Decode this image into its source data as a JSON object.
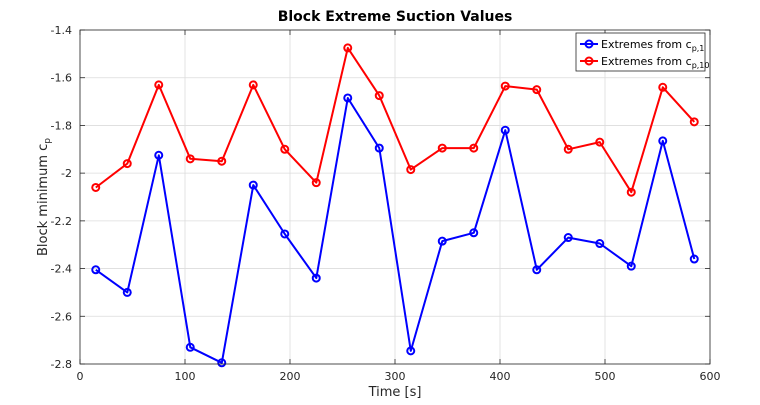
{
  "chart_data": {
    "type": "line",
    "title": "Block Extreme Suction Values",
    "xlabel": "Time [s]",
    "ylabel": "Block minimum c",
    "ylabel_subscript": "p",
    "xlim": [
      0,
      600
    ],
    "ylim": [
      -2.8,
      -1.4
    ],
    "xticks": [
      0,
      100,
      200,
      300,
      400,
      500,
      600
    ],
    "yticks": [
      -2.8,
      -2.6,
      -2.4,
      -2.2,
      -2.0,
      -1.8,
      -1.6,
      -1.4
    ],
    "xtick_labels": [
      "0",
      "100",
      "200",
      "300",
      "400",
      "500",
      "600"
    ],
    "ytick_labels": [
      "-2.8",
      "-2.6",
      "-2.4",
      "-2.2",
      "-2",
      "-1.8",
      "-1.6",
      "-1.4"
    ],
    "grid": true,
    "legend_position": "top-right",
    "x": [
      15,
      45,
      75,
      105,
      135,
      165,
      195,
      225,
      255,
      285,
      315,
      345,
      375,
      405,
      435,
      465,
      495,
      525,
      555,
      585
    ],
    "series": [
      {
        "name": "Extremes from c",
        "name_subscript": "p,1",
        "color": "#0000ff",
        "values": [
          -2.405,
          -2.5,
          -1.925,
          -2.73,
          -2.795,
          -2.05,
          -2.255,
          -2.44,
          -1.685,
          -1.895,
          -2.745,
          -2.285,
          -2.25,
          -1.82,
          -2.405,
          -2.27,
          -2.295,
          -2.39,
          -1.865,
          -2.36
        ]
      },
      {
        "name": "Extremes from c",
        "name_subscript": "p,10",
        "color": "#ff0000",
        "values": [
          -2.06,
          -1.96,
          -1.63,
          -1.94,
          -1.95,
          -1.63,
          -1.9,
          -2.04,
          -1.475,
          -1.675,
          -1.985,
          -1.895,
          -1.895,
          -1.635,
          -1.65,
          -1.9,
          -1.87,
          -2.08,
          -1.64,
          -1.785
        ]
      }
    ]
  }
}
